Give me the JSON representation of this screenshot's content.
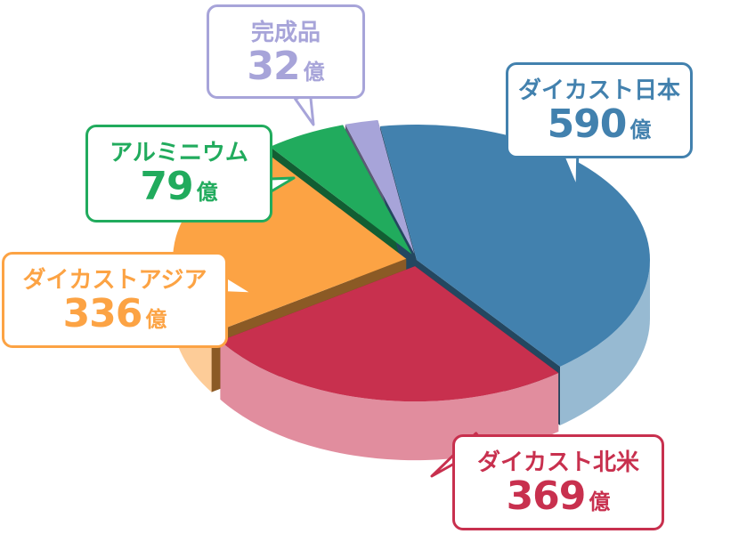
{
  "chart_data": {
    "type": "pie",
    "unit": "億",
    "slices": [
      {
        "label": "ダイカスト日本",
        "value": 590,
        "display": "590",
        "color": "#4281ae"
      },
      {
        "label": "ダイカスト北米",
        "value": 369,
        "display": "369",
        "color": "#c8304e"
      },
      {
        "label": "ダイカストアジア",
        "value": 336,
        "display": "336",
        "color": "#fca344"
      },
      {
        "label": "アルミニウム",
        "value": 79,
        "display": "79",
        "color": "#21ab5d"
      },
      {
        "label": "完成品",
        "value": 32,
        "display": "32",
        "color": "#a7a4d9"
      }
    ]
  }
}
